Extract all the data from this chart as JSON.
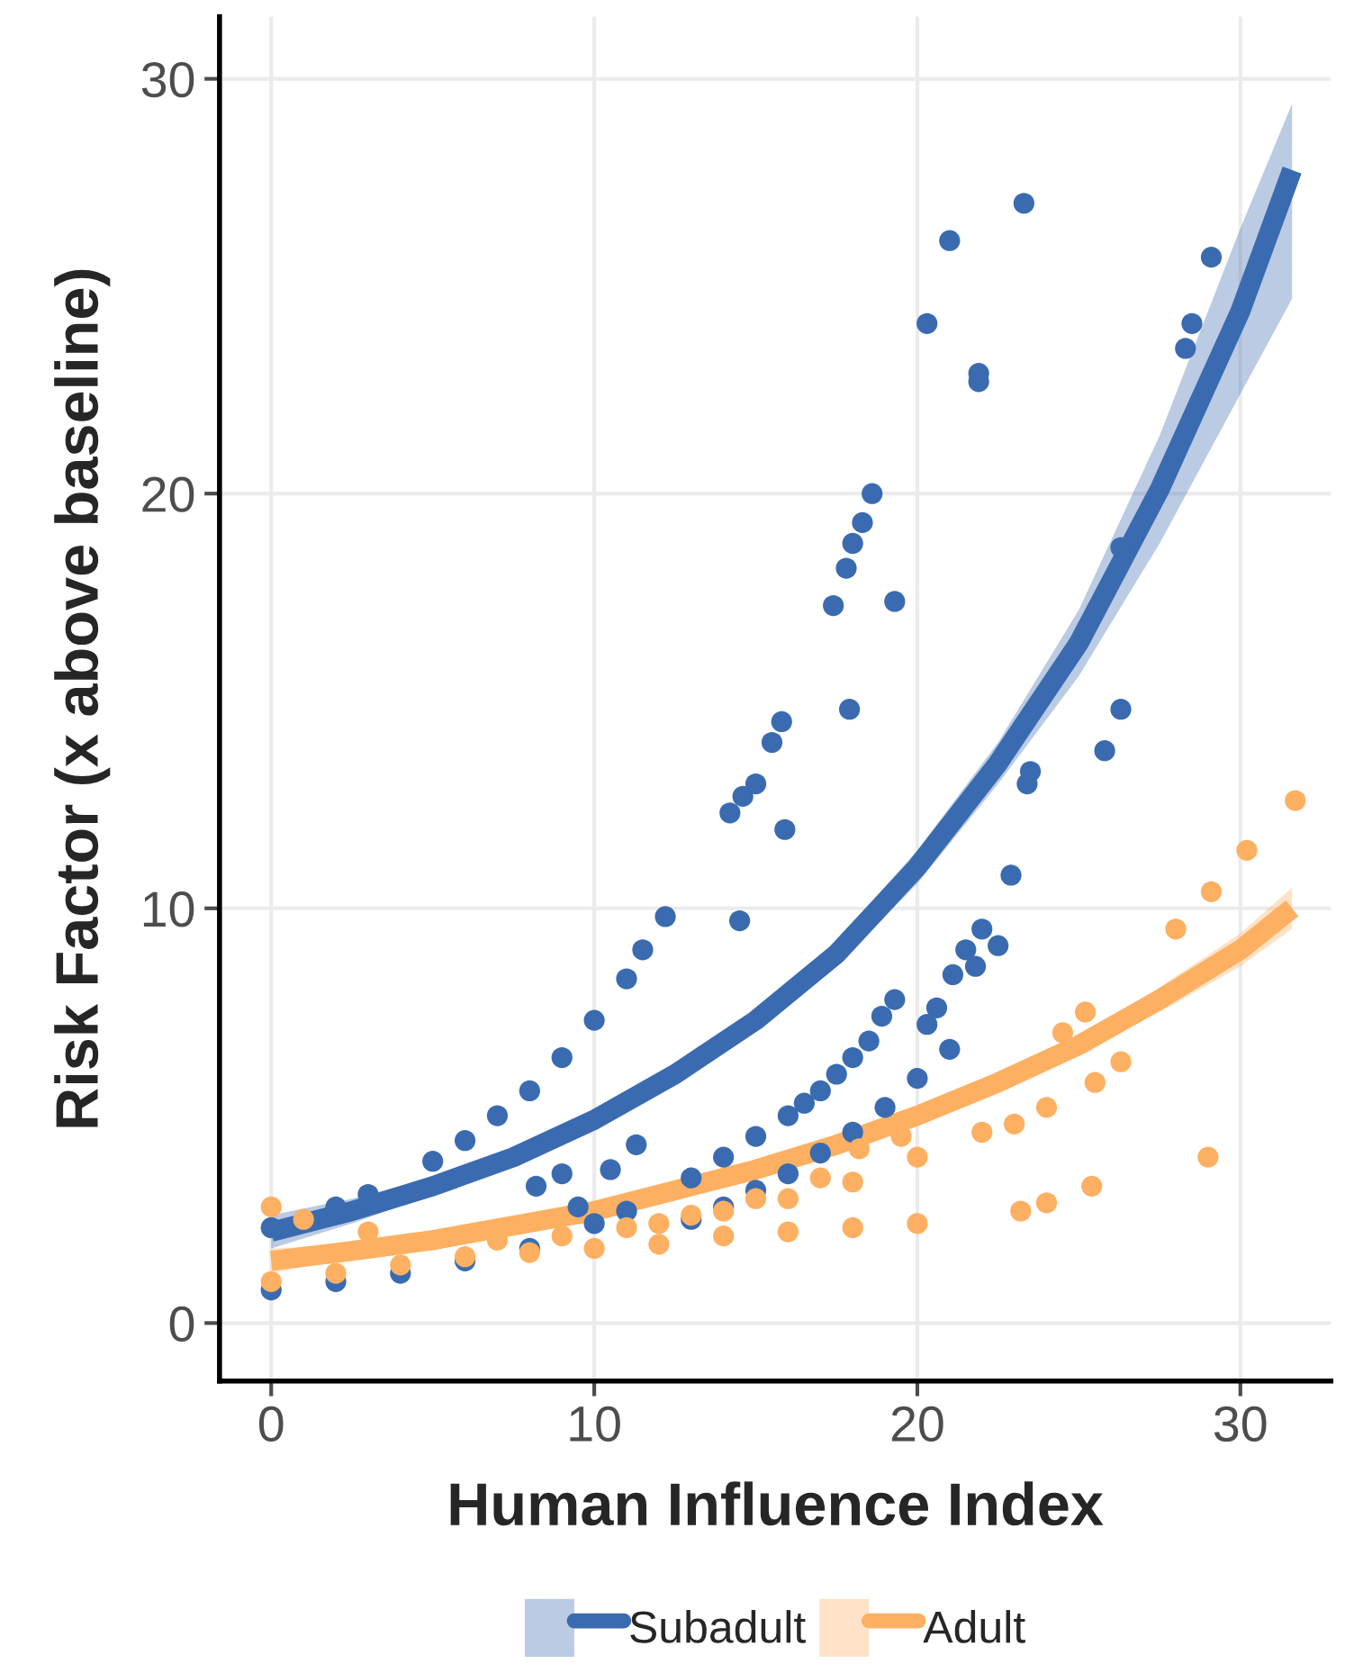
{
  "chart_data": {
    "type": "scatter",
    "xlabel": "Human Influence Index",
    "ylabel": "Risk Factor (x above baseline)",
    "xlim": [
      -1.6,
      32.8
    ],
    "ylim": [
      -1.4,
      31.5
    ],
    "xticks": [
      0,
      10,
      20,
      30
    ],
    "yticks": [
      0,
      10,
      20,
      30
    ],
    "grid": true,
    "legend": "bottom",
    "series": [
      {
        "marker": "circle",
        "color": "#3a6bb0",
        "x": [
          0,
          2,
          3,
          5,
          6,
          7,
          8,
          9,
          10,
          11,
          11.5,
          12.2,
          14.5,
          14.2,
          14.6,
          15,
          15.5,
          15.8,
          15.9,
          17.9,
          17.4,
          17.8,
          18,
          18.3,
          18.6,
          19.3,
          20.3,
          21,
          21.9,
          21.9,
          23.3,
          28.3,
          28.5,
          29.1,
          26.3,
          26.3,
          25.8,
          23.5,
          23.4,
          22.9,
          22,
          21.5,
          21.1,
          20.6,
          20.3,
          19.3,
          18.9,
          18.5,
          18,
          17.5,
          17,
          16.5,
          16,
          15,
          14,
          13,
          11,
          10,
          22.5,
          21.8,
          21,
          20,
          19,
          18,
          17,
          16,
          15,
          14,
          13,
          9.5,
          9,
          8.2,
          11.3,
          10.5,
          0,
          2,
          4,
          6,
          8
        ],
        "values": [
          2.3,
          2.8,
          3.1,
          3.9,
          4.4,
          5,
          5.6,
          6.4,
          7.3,
          8.3,
          9,
          9.8,
          9.7,
          12.3,
          12.7,
          13,
          14,
          14.5,
          11.9,
          14.8,
          17.3,
          18.2,
          18.8,
          19.3,
          20,
          17.4,
          24.1,
          26.1,
          22.9,
          22.7,
          27,
          23.5,
          24.1,
          25.7,
          18.7,
          14.8,
          13.8,
          13.3,
          13,
          10.8,
          9.5,
          9,
          8.4,
          7.6,
          7.2,
          7.8,
          7.4,
          6.8,
          6.4,
          6,
          5.6,
          5.3,
          5,
          4.5,
          4,
          3.5,
          2.7,
          2.4,
          9.1,
          8.6,
          6.6,
          5.9,
          5.2,
          4.6,
          4.1,
          3.6,
          3.2,
          2.8,
          2.5,
          2.8,
          3.6,
          3.3,
          4.3,
          3.7,
          0.8,
          1,
          1.2,
          1.5,
          1.8
        ]
      },
      {
        "marker": "circle",
        "color": "#fdb062",
        "x": [
          31.7,
          30.2,
          29.1,
          28,
          29,
          25.4,
          24,
          23.2,
          20,
          18,
          16,
          14,
          12,
          10,
          8,
          6,
          4,
          2,
          0,
          25.2,
          24.5,
          19.5,
          18.2,
          17,
          15,
          13,
          11,
          9,
          7,
          3,
          1,
          0,
          26.3,
          25.5,
          22,
          20,
          18,
          16,
          14,
          12,
          24,
          23
        ],
        "values": [
          12.6,
          11.4,
          10.4,
          9.5,
          4,
          3.3,
          2.9,
          2.7,
          2.4,
          2.3,
          2.2,
          2.1,
          1.9,
          1.8,
          1.7,
          1.6,
          1.4,
          1.2,
          1,
          7.5,
          7,
          4.5,
          4.2,
          3.5,
          3,
          2.6,
          2.3,
          2.1,
          2,
          2.2,
          2.5,
          2.8,
          6.3,
          5.8,
          4.6,
          4,
          3.4,
          3,
          2.7,
          2.4,
          5.2,
          4.8
        ]
      },
      {
        "type": "line",
        "name": "Subadult",
        "color": "#3a6bb0",
        "x": [
          0,
          2.5,
          5,
          7.5,
          10,
          12.5,
          15,
          17.5,
          20,
          22.5,
          25,
          27.5,
          30,
          31.6
        ],
        "values": [
          2.2,
          2.7,
          3.3,
          4,
          4.9,
          6,
          7.3,
          8.9,
          11,
          13.5,
          16.4,
          20.1,
          24.4,
          27.8
        ],
        "lower": [
          1.8,
          2.4,
          3.1,
          3.8,
          4.7,
          5.8,
          7.1,
          8.6,
          10.6,
          13,
          15.6,
          18.8,
          22.4,
          24.7
        ],
        "upper": [
          2.6,
          3,
          3.5,
          4.2,
          5.1,
          6.2,
          7.5,
          9.2,
          11.4,
          14,
          17.2,
          21.4,
          26.4,
          29.4
        ]
      },
      {
        "type": "line",
        "name": "Adult",
        "color": "#fdb062",
        "x": [
          0,
          2.5,
          5,
          7.5,
          10,
          12.5,
          15,
          17.5,
          20,
          22.5,
          25,
          27.5,
          30,
          31.6
        ],
        "values": [
          1.5,
          1.74,
          2,
          2.35,
          2.7,
          3.2,
          3.7,
          4.3,
          5,
          5.8,
          6.7,
          7.8,
          9,
          10
        ],
        "lower": [
          1.2,
          1.6,
          1.9,
          2.25,
          2.6,
          3.1,
          3.6,
          4.2,
          4.9,
          5.65,
          6.5,
          7.5,
          8.6,
          9.5
        ],
        "upper": [
          1.8,
          1.9,
          2.1,
          2.45,
          2.8,
          3.3,
          3.8,
          4.4,
          5.1,
          5.95,
          6.9,
          8.1,
          9.4,
          10.5
        ]
      }
    ]
  }
}
